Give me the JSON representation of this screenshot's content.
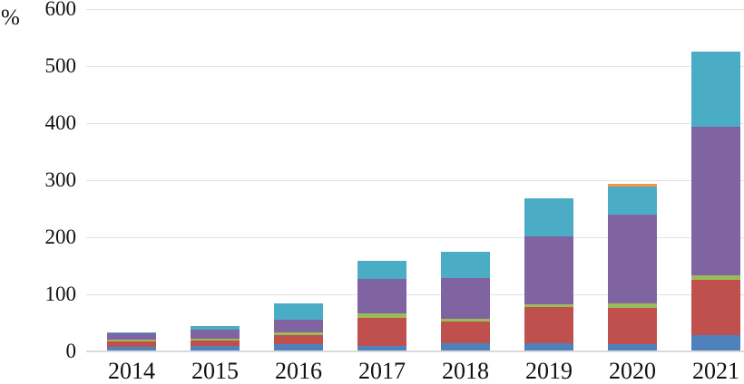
{
  "chart_data": {
    "type": "bar",
    "stacked": true,
    "title": "",
    "xlabel": "",
    "ylabel": "%",
    "ylim": [
      0,
      600
    ],
    "yticks": [
      0,
      100,
      200,
      300,
      400,
      500,
      600
    ],
    "grid": true,
    "legend": false,
    "categories": [
      "2014",
      "2015",
      "2016",
      "2017",
      "2018",
      "2019",
      "2020",
      "2021"
    ],
    "series": [
      {
        "name": "blue",
        "color": "#4F81BD",
        "values": [
          8,
          9,
          13,
          9,
          14,
          15,
          13,
          28
        ]
      },
      {
        "name": "red",
        "color": "#C0504D",
        "values": [
          10,
          10,
          16,
          50,
          39,
          63,
          63,
          98
        ]
      },
      {
        "name": "green",
        "color": "#9BBB59",
        "values": [
          2,
          4,
          5,
          7,
          4,
          5,
          8,
          8
        ]
      },
      {
        "name": "purple",
        "color": "#8064A2",
        "values": [
          12,
          15,
          21,
          61,
          71,
          119,
          156,
          260
        ]
      },
      {
        "name": "teal",
        "color": "#4BACC6",
        "values": [
          2,
          7,
          29,
          32,
          46,
          66,
          49,
          131
        ]
      },
      {
        "name": "orange",
        "color": "#F79646",
        "values": [
          0,
          0,
          0,
          0,
          0,
          0,
          4,
          0
        ]
      }
    ],
    "totals": [
      34,
      45,
      84,
      159,
      174,
      268,
      293,
      525
    ]
  },
  "theme": {
    "gridline_color": "#E2E2E2",
    "axis_color": "#D9D9D9",
    "text_color": "#111111",
    "background_color": "#FFFFFF"
  }
}
